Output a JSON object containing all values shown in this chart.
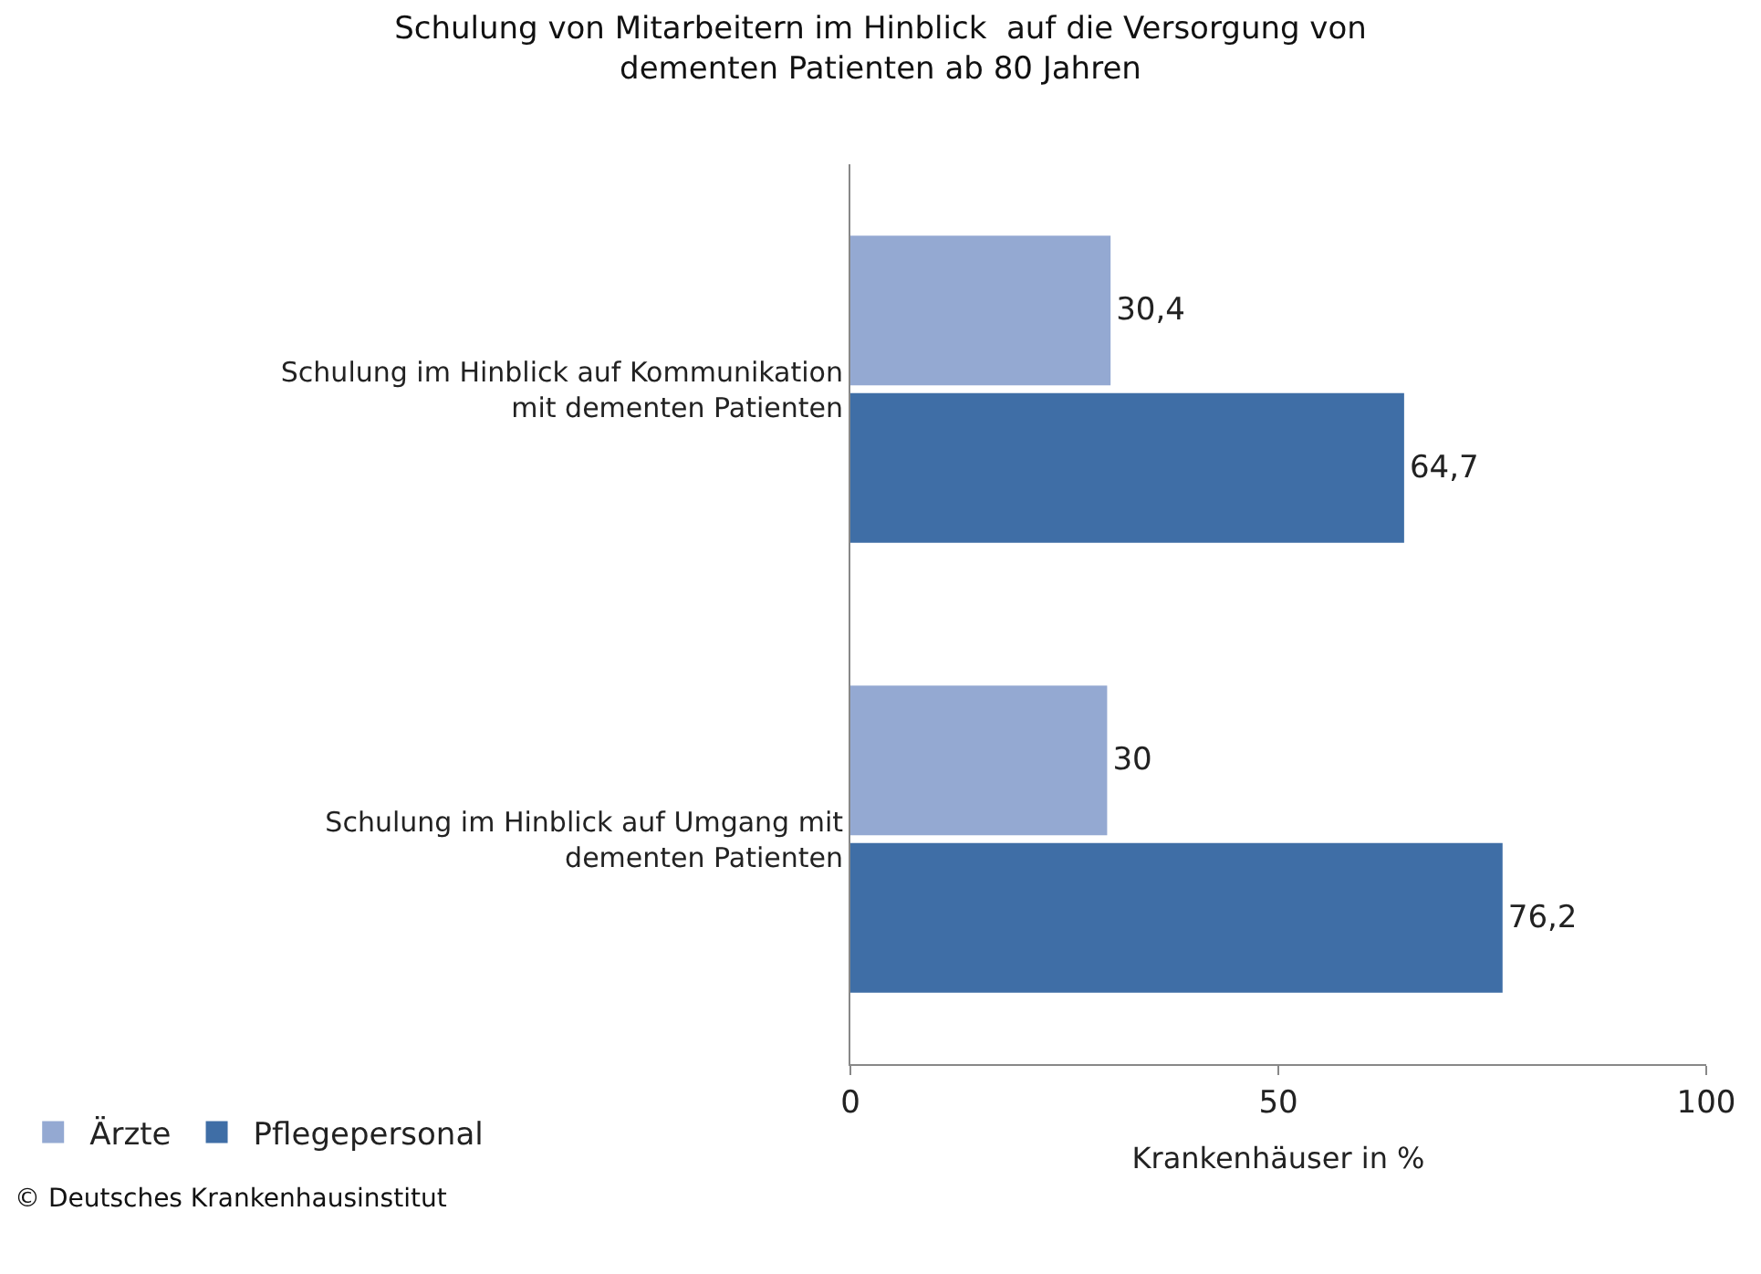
{
  "chart_data": {
    "type": "bar",
    "orientation": "horizontal",
    "title": "Schulung von Mitarbeitern im Hinblick  auf die Versorgung von dementen Patienten ab 80 Jahren",
    "categories": [
      "Schulung im Hinblick auf Kommunikation mit dementen Patienten",
      "Schulung im Hinblick auf Umgang mit dementen Patienten"
    ],
    "series": [
      {
        "name": "Ärzte",
        "color": "#94a9d2",
        "values": [
          30.4,
          30
        ],
        "value_labels": [
          "30,4",
          "30"
        ]
      },
      {
        "name": "Pflegepersonal",
        "color": "#3f6ea6",
        "values": [
          64.7,
          76.2
        ],
        "value_labels": [
          "64,7",
          "76,2"
        ]
      }
    ],
    "xlabel": "Krankenhäuser in %",
    "xlim": [
      0,
      100
    ],
    "xticks": [
      0,
      50,
      100
    ],
    "legend": "bottom left",
    "annotations": [
      "© Deutsches Krankenhausinstitut"
    ]
  }
}
